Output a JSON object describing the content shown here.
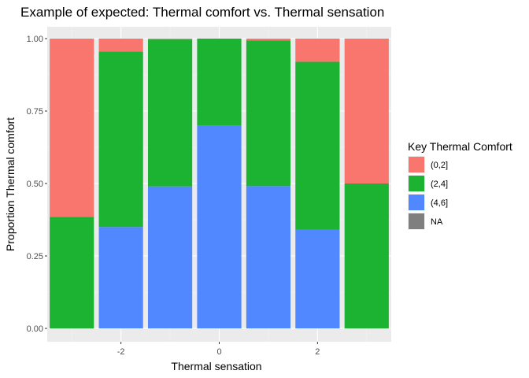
{
  "chart_data": {
    "type": "bar",
    "stacked": true,
    "position": "fill",
    "title": "Example of expected: Thermal comfort vs. Thermal sensation",
    "xlabel": "Thermal sensation",
    "ylabel": "Proportion Thermal comfort",
    "x": [
      -3,
      -2,
      -1,
      0,
      1,
      2,
      3
    ],
    "xticks": [
      -2,
      0,
      2
    ],
    "xtick_labels": [
      "-2",
      "0",
      "2"
    ],
    "xlim": [
      -3.5,
      3.5
    ],
    "yticks": [
      0,
      0.25,
      0.5,
      0.75,
      1
    ],
    "ytick_labels": [
      "0.00",
      "0.25",
      "0.50",
      "0.75",
      "1.00"
    ],
    "ylim": [
      0,
      1
    ],
    "grid": true,
    "legend_title": "Key Thermal Comfort",
    "legend_position": "right",
    "series": [
      {
        "name": "(0,2]",
        "color": "#F8766D",
        "values": [
          0.615,
          0.045,
          0.003,
          0.0,
          0.006,
          0.08,
          0.5
        ]
      },
      {
        "name": "(2,4]",
        "color": "#1CB232",
        "values": [
          0.385,
          0.605,
          0.507,
          0.3,
          0.503,
          0.58,
          0.5
        ]
      },
      {
        "name": "(4,6]",
        "color": "#5288FF",
        "values": [
          0.0,
          0.35,
          0.49,
          0.7,
          0.491,
          0.34,
          0.0
        ]
      },
      {
        "name": "NA",
        "color": "#7F7F7F",
        "values": [
          0,
          0,
          0,
          0,
          0,
          0,
          0
        ]
      }
    ]
  }
}
